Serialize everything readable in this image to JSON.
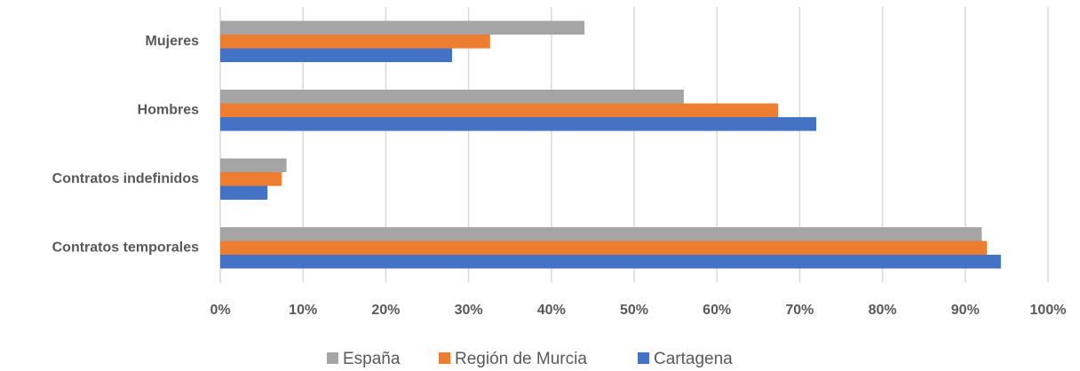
{
  "chart_data": {
    "type": "bar",
    "orientation": "horizontal",
    "categories": [
      "Mujeres",
      "Hombres",
      "Contratos indefinidos",
      "Contratos temporales"
    ],
    "series": [
      {
        "name": "España",
        "color": "#a5a5a5",
        "values": [
          44,
          56,
          8,
          92
        ]
      },
      {
        "name": "Región de Murcia",
        "color": "#ed7d31",
        "values": [
          32.6,
          67.4,
          7.4,
          92.6
        ]
      },
      {
        "name": "Cartagena",
        "color": "#4472c4",
        "values": [
          28,
          72,
          5.7,
          94.3
        ]
      }
    ],
    "xlim": [
      0,
      100
    ],
    "xticks": [
      {
        "value": 0,
        "label": "0%"
      },
      {
        "value": 10,
        "label": "10%"
      },
      {
        "value": 20,
        "label": "20%"
      },
      {
        "value": 30,
        "label": "30%"
      },
      {
        "value": 40,
        "label": "40%"
      },
      {
        "value": 50,
        "label": "50%"
      },
      {
        "value": 60,
        "label": "60%"
      },
      {
        "value": 70,
        "label": "70%"
      },
      {
        "value": 80,
        "label": "80%"
      },
      {
        "value": 90,
        "label": "90%"
      },
      {
        "value": 100,
        "label": "100%"
      }
    ],
    "grid": true,
    "legend": "bottom"
  }
}
